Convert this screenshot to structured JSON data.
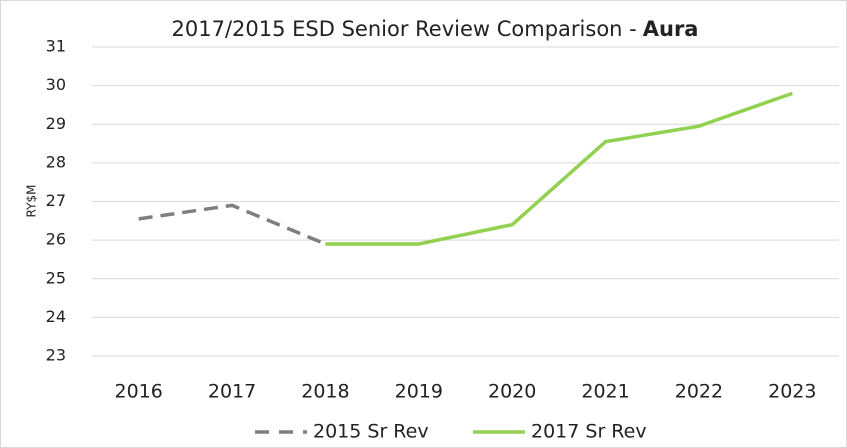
{
  "chart_data": {
    "type": "line",
    "title": "2017/2015 ESD Senior Review Comparison -",
    "title_bold": "Aura",
    "y_label": "RY$M",
    "categories": [
      "2016",
      "2017",
      "2018",
      "2019",
      "2020",
      "2021",
      "2022",
      "2023"
    ],
    "series": [
      {
        "name": "2015 Sr Rev",
        "color": "#7f7f7f",
        "dashed": true,
        "values": [
          26.55,
          26.9,
          25.9,
          null,
          null,
          null,
          null,
          null
        ]
      },
      {
        "name": "2017 Sr Rev",
        "color": "#92d050",
        "dashed": false,
        "values": [
          null,
          null,
          25.9,
          25.9,
          26.4,
          28.55,
          28.95,
          29.8
        ]
      }
    ],
    "ylim": [
      23,
      31
    ],
    "yticks": [
      23,
      24,
      25,
      26,
      27,
      28,
      29,
      30,
      31
    ],
    "grid": true
  }
}
